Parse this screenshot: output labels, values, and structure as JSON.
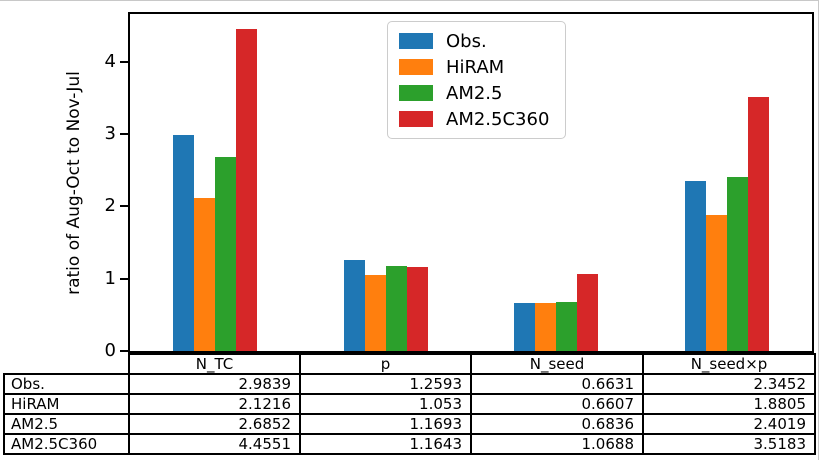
{
  "chart_data": {
    "type": "bar",
    "title": "",
    "xlabel": "",
    "ylabel": "ratio of Aug-Oct to Nov-Jul",
    "categories": [
      "N_TC",
      "p",
      "N_seed",
      "N_seed×p"
    ],
    "series": [
      {
        "name": "Obs.",
        "color": "#1f77b4",
        "values": [
          2.9839,
          1.2593,
          0.6631,
          2.3452
        ]
      },
      {
        "name": "HiRAM",
        "color": "#ff7f0e",
        "values": [
          2.1216,
          1.053,
          0.6607,
          1.8805
        ]
      },
      {
        "name": "AM2.5",
        "color": "#2ca02c",
        "values": [
          2.6852,
          1.1693,
          0.6836,
          2.4019
        ]
      },
      {
        "name": "AM2.5C360",
        "color": "#d62728",
        "values": [
          4.4551,
          1.1643,
          1.0688,
          3.5183
        ]
      }
    ],
    "ylim": [
      0,
      4.66
    ],
    "yticks": [
      0,
      1,
      2,
      3,
      4
    ],
    "grid": false,
    "legend_position": "upper center-left inside plot"
  },
  "table": {
    "col_headers": [
      "N_TC",
      "p",
      "N_seed",
      "N_seed×p"
    ],
    "row_labels": [
      "Obs.",
      "HiRAM",
      "AM2.5",
      "AM2.5C360"
    ],
    "cells": [
      [
        "2.9839",
        "1.2593",
        "0.6631",
        "2.3452"
      ],
      [
        "2.1216",
        "1.053",
        "0.6607",
        "1.8805"
      ],
      [
        "2.6852",
        "1.1693",
        "0.6836",
        "2.4019"
      ],
      [
        "4.4551",
        "1.1643",
        "1.0688",
        "3.5183"
      ]
    ]
  }
}
